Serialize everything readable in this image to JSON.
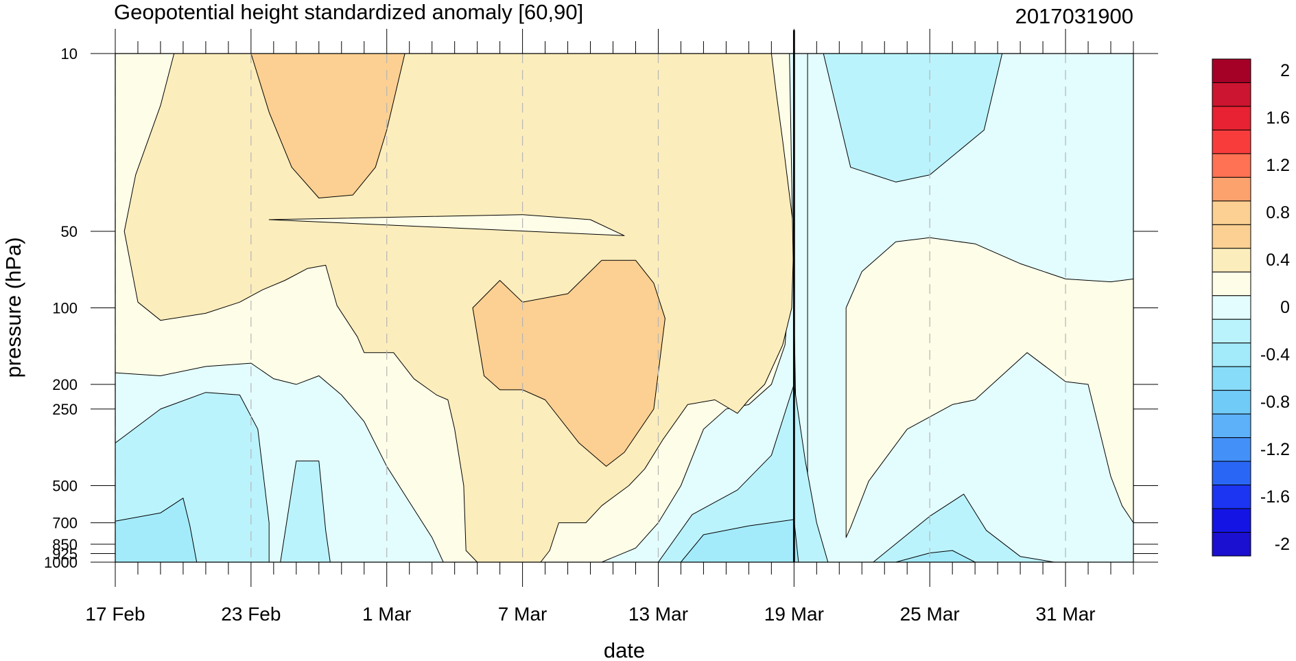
{
  "chart_data": {
    "type": "heatmap",
    "title": "Geopotential height standardized anomaly [60,90]",
    "date_stamp": "2017031900",
    "xlabel": "date",
    "ylabel": "pressure (hPa)",
    "x_range": [
      "2017-02-17",
      "2017-04-03"
    ],
    "y_scale": "log",
    "y_range": [
      1000,
      10
    ],
    "x_ticks": [
      {
        "date": "2017-02-17",
        "label": "17 Feb"
      },
      {
        "date": "2017-02-23",
        "label": "23 Feb"
      },
      {
        "date": "2017-03-01",
        "label": "1 Mar"
      },
      {
        "date": "2017-03-07",
        "label": "7 Mar"
      },
      {
        "date": "2017-03-13",
        "label": "13 Mar"
      },
      {
        "date": "2017-03-19",
        "label": "19 Mar"
      },
      {
        "date": "2017-03-25",
        "label": "25 Mar"
      },
      {
        "date": "2017-03-31",
        "label": "31 Mar"
      }
    ],
    "y_ticks": [
      10,
      50,
      100,
      200,
      250,
      500,
      700,
      850,
      925,
      1000
    ],
    "current_date_marker": "2017-03-19",
    "grid": "dashed vertical lines at labeled dates",
    "colorbar": {
      "labels": [
        "2",
        "1.6",
        "1.2",
        "0.8",
        "0.4",
        "0",
        "-0.4",
        "-0.8",
        "-1.2",
        "-1.6",
        "-2"
      ],
      "levels": [
        2,
        1.8,
        1.6,
        1.4,
        1.2,
        1.0,
        0.8,
        0.6,
        0.4,
        0.2,
        0,
        -0.2,
        -0.4,
        -0.6,
        -0.8,
        -1.0,
        -1.2,
        -1.4,
        -1.6,
        -1.8,
        -2
      ],
      "colors": [
        "#a50026",
        "#cc1530",
        "#e82232",
        "#f83c3c",
        "#ff7254",
        "#fca26d",
        "#fbd092",
        "#fbd092",
        "#fcedbc",
        "#fdfde8",
        "#e3fcfd",
        "#bbf3fd",
        "#a3ebfb",
        "#87dcf9",
        "#71cbf7",
        "#5db1f8",
        "#4391f8",
        "#2a66f6",
        "#1c35f2",
        "#1415e4",
        "#1b0fd0"
      ]
    },
    "fill_colors": {
      "c_0_0.2": "#fdfde8",
      "c_0.2_0.6": "#fcedbc",
      "c_0.6_1.0": "#fbd092",
      "c_m0.2_0": "#e3fcfd",
      "c_m0.4_m0.2": "#bbf3fd",
      "c_m0.6_m0.4": "#a3ebfb",
      "c_m0.8_m0.6": "#87dcf9"
    },
    "regions": [
      {
        "level": "0.2-0.6",
        "points": [
          [
            "2017-02-17.3",
            10
          ],
          [
            "2017-02-19.6",
            10
          ],
          [
            "2017-02-19.0",
            16
          ],
          [
            "2017-02-17.9",
            30
          ],
          [
            "2017-02-17.4",
            50
          ],
          [
            "2017-02-18.0",
            95
          ],
          [
            "2017-02-19.0",
            112
          ],
          [
            "2017-02-21.0",
            105
          ],
          [
            "2017-02-22.5",
            95
          ],
          [
            "2017-02-23.5",
            85
          ],
          [
            "2017-02-24.5",
            78
          ],
          [
            "2017-02-25.5",
            70
          ],
          [
            "2017-02-26.3",
            68
          ],
          [
            "2017-02-26.8",
            98
          ],
          [
            "2017-02-27.7",
            130
          ],
          [
            "2017-02-28.0",
            150
          ],
          [
            "2017-03-01.3",
            150
          ],
          [
            "2017-03-02.2",
            190
          ],
          [
            "2017-03-03.2",
            220
          ],
          [
            "2017-03-03.7",
            230
          ],
          [
            "2017-03-04.0",
            300
          ],
          [
            "2017-03-04.4",
            500
          ],
          [
            "2017-03-04.5",
            900
          ],
          [
            "2017-03-05.0",
            1000
          ],
          [
            "2017-03-07.0",
            1000
          ],
          [
            "2017-03-07.8",
            1000
          ],
          [
            "2017-03-08.2",
            900
          ],
          [
            "2017-03-08.6",
            700
          ],
          [
            "2017-03-09.8",
            700
          ],
          [
            "2017-03-10.5",
            600
          ],
          [
            "2017-03-11.7",
            500
          ],
          [
            "2017-03-12.4",
            430
          ],
          [
            "2017-03-13.2",
            330
          ],
          [
            "2017-03-14.3",
            240
          ],
          [
            "2017-03-15.5",
            230
          ],
          [
            "2017-03-16.5",
            260
          ],
          [
            "2017-03-17.0",
            230
          ],
          [
            "2017-03-17.7",
            200
          ],
          [
            "2017-03-18.5",
            140
          ],
          [
            "2017-03-18.9",
            100
          ],
          [
            "2017-03-19.0",
            50
          ],
          [
            "2017-03-18.5",
            22
          ],
          [
            "2017-03-18.2",
            14
          ],
          [
            "2017-03-18.0",
            10
          ]
        ]
      },
      {
        "level": "0-0.2",
        "points": [
          [
            "2017-02-23.8",
            45
          ],
          [
            "2017-03-07.0",
            43
          ],
          [
            "2017-03-10.0",
            45
          ],
          [
            "2017-03-11.5",
            52
          ]
        ]
      },
      {
        "level": "0.6-1.0",
        "points": [
          [
            "2017-02-23.0",
            10
          ],
          [
            "2017-03-01.8",
            10
          ],
          [
            "2017-03-01.0",
            20
          ],
          [
            "2017-02-28.5",
            28
          ],
          [
            "2017-02-27.5",
            36
          ],
          [
            "2017-02-26.0",
            37
          ],
          [
            "2017-02-24.8",
            28
          ],
          [
            "2017-02-23.8",
            17
          ]
        ]
      },
      {
        "level": "0.6-1.0",
        "points": [
          [
            "2017-03-04.8",
            100
          ],
          [
            "2017-03-06.0",
            78
          ],
          [
            "2017-03-07.0",
            95
          ],
          [
            "2017-03-09.0",
            88
          ],
          [
            "2017-03-10.5",
            65
          ],
          [
            "2017-03-12.0",
            65
          ],
          [
            "2017-03-12.8",
            80
          ],
          [
            "2017-03-13.3",
            110
          ],
          [
            "2017-03-12.8",
            250
          ],
          [
            "2017-03-11.5",
            370
          ],
          [
            "2017-03-10.7",
            420
          ],
          [
            "2017-03-09.5",
            340
          ],
          [
            "2017-03-08.0",
            230
          ],
          [
            "2017-03-07.0",
            210
          ],
          [
            "2017-03-06.0",
            210
          ],
          [
            "2017-03-05.3",
            185
          ]
        ]
      },
      {
        "level": "-0.2-0",
        "points": [
          [
            "2017-03-18.8",
            10
          ],
          [
            "2017-03-19.6",
            10
          ],
          [
            "2017-03-19.6",
            1000
          ],
          [
            "2017-03-19.2",
            1000
          ]
        ]
      },
      {
        "level": "-0.4--0.2",
        "points": [
          [
            "2017-03-20.3",
            10
          ],
          [
            "2017-03-28.2",
            10
          ],
          [
            "2017-03-27.4",
            20
          ],
          [
            "2017-03-25.0",
            30
          ],
          [
            "2017-03-23.5",
            32
          ],
          [
            "2017-03-21.5",
            28
          ]
        ]
      },
      {
        "level": "0-0.2",
        "points": [
          [
            "2017-03-21.3",
            100
          ],
          [
            "2017-03-22.0",
            72
          ],
          [
            "2017-03-23.5",
            55
          ],
          [
            "2017-03-25.0",
            53
          ],
          [
            "2017-03-27.0",
            56
          ],
          [
            "2017-03-29.0",
            67
          ],
          [
            "2017-03-31.0",
            77
          ],
          [
            "2017-04-02.0",
            79
          ],
          [
            "2017-04-03.0",
            77
          ],
          [
            "2017-04-03.0",
            700
          ],
          [
            "2017-04-02.5",
            600
          ],
          [
            "2017-04-02.0",
            460
          ],
          [
            "2017-04-01.0",
            200
          ],
          [
            "2017-03-31.0",
            195
          ],
          [
            "2017-03-29.3",
            150
          ],
          [
            "2017-03-27.0",
            230
          ],
          [
            "2017-03-26.0",
            240
          ],
          [
            "2017-03-24.0",
            300
          ],
          [
            "2017-03-22.3",
            480
          ],
          [
            "2017-03-21.5",
            730
          ],
          [
            "2017-03-21.3",
            800
          ]
        ]
      },
      {
        "level": "-0.4--0.2",
        "points": [
          [
            "2017-02-17.0",
            340
          ],
          [
            "2017-02-19.0",
            250
          ],
          [
            "2017-02-21.0",
            215
          ],
          [
            "2017-02-22.5",
            220
          ],
          [
            "2017-02-23.3",
            300
          ],
          [
            "2017-02-23.6",
            500
          ],
          [
            "2017-02-23.8",
            700
          ],
          [
            "2017-02-23.8",
            1000
          ],
          [
            "2017-02-17.0",
            1000
          ]
        ]
      },
      {
        "level": "-0.6--0.4",
        "points": [
          [
            "2017-02-17.0",
            690
          ],
          [
            "2017-02-19.0",
            640
          ],
          [
            "2017-02-20.0",
            560
          ],
          [
            "2017-02-20.3",
            720
          ],
          [
            "2017-02-20.6",
            1000
          ],
          [
            "2017-02-17.0",
            1000
          ]
        ]
      },
      {
        "level": "-0.4--0.2",
        "points": [
          [
            "2017-02-24.3",
            1000
          ],
          [
            "2017-02-25.0",
            400
          ],
          [
            "2017-02-26.0",
            400
          ],
          [
            "2017-02-26.3",
            750
          ],
          [
            "2017-02-26.5",
            1000
          ]
        ]
      },
      {
        "level": "-0.4--0.2",
        "points": [
          [
            "2017-03-13.0",
            1000
          ],
          [
            "2017-03-14.5",
            650
          ],
          [
            "2017-03-16.5",
            520
          ],
          [
            "2017-03-18.0",
            380
          ],
          [
            "2017-03-19.0",
            200
          ],
          [
            "2017-03-19.5",
            400
          ],
          [
            "2017-03-20.0",
            700
          ],
          [
            "2017-03-20.5",
            1000
          ]
        ]
      },
      {
        "level": "-0.6--0.4",
        "points": [
          [
            "2017-03-14.0",
            1000
          ],
          [
            "2017-03-15.0",
            780
          ],
          [
            "2017-03-17.0",
            720
          ],
          [
            "2017-03-19.0",
            680
          ],
          [
            "2017-03-19.2",
            1000
          ]
        ]
      },
      {
        "level": "-0.4--0.2",
        "points": [
          [
            "2017-03-22.5",
            1000
          ],
          [
            "2017-03-25.0",
            660
          ],
          [
            "2017-03-26.5",
            540
          ],
          [
            "2017-03-27.5",
            750
          ],
          [
            "2017-03-29.0",
            950
          ],
          [
            "2017-03-30.5",
            1000
          ]
        ]
      },
      {
        "level": "-0.6--0.4",
        "points": [
          [
            "2017-03-23.5",
            1000
          ],
          [
            "2017-03-25.0",
            920
          ],
          [
            "2017-03-26.0",
            900
          ],
          [
            "2017-03-27.0",
            1000
          ]
        ]
      }
    ]
  }
}
